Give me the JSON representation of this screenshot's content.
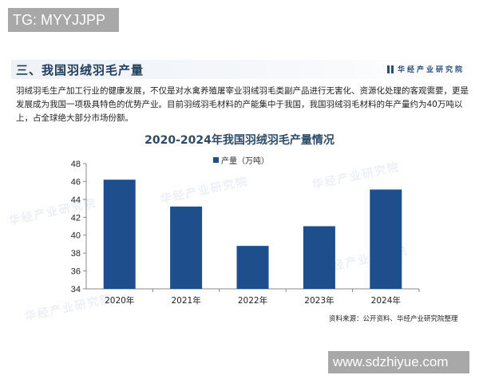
{
  "overlays": {
    "top_badge": "TG: MYYJJPP",
    "bottom_badge": "www.sdzhiyue.com"
  },
  "header": {
    "section_title": "三、我国羽绒羽毛产量",
    "brand": "华经产业研究院"
  },
  "body": {
    "paragraph": "羽绒羽毛生产加工行业的健康发展，不仅是对水禽养殖屠宰业羽绒羽毛类副产品进行无害化、资源化处理的客观需要，更是发展成为我国一项极具特色的优势产业。目前羽绒羽毛材料的产能集中于我国，我国羽绒羽毛材料的年产量约为40万吨以上，占全球绝大部分市场份额。"
  },
  "watermark": "华经产业研究院",
  "source_note": "资料来源：公开资料、华经产业研究院整理",
  "colors": {
    "bar": "#1f4e8c",
    "title": "#2e4a66",
    "header_text": "#1f3b5c"
  },
  "chart_data": {
    "type": "bar",
    "title": "2020-2024年我国羽绒羽毛产量情况",
    "categories": [
      "2020年",
      "2021年",
      "2022年",
      "2023年",
      "2024年"
    ],
    "series": [
      {
        "name": "产量（万吨）",
        "values": [
          46.2,
          43.2,
          38.8,
          41.0,
          45.1
        ]
      }
    ],
    "xlabel": "",
    "ylabel": "",
    "ylim": [
      34,
      48
    ],
    "yticks": [
      34,
      36,
      38,
      40,
      42,
      44,
      46,
      48
    ],
    "grid": false,
    "legend_position": "top"
  }
}
